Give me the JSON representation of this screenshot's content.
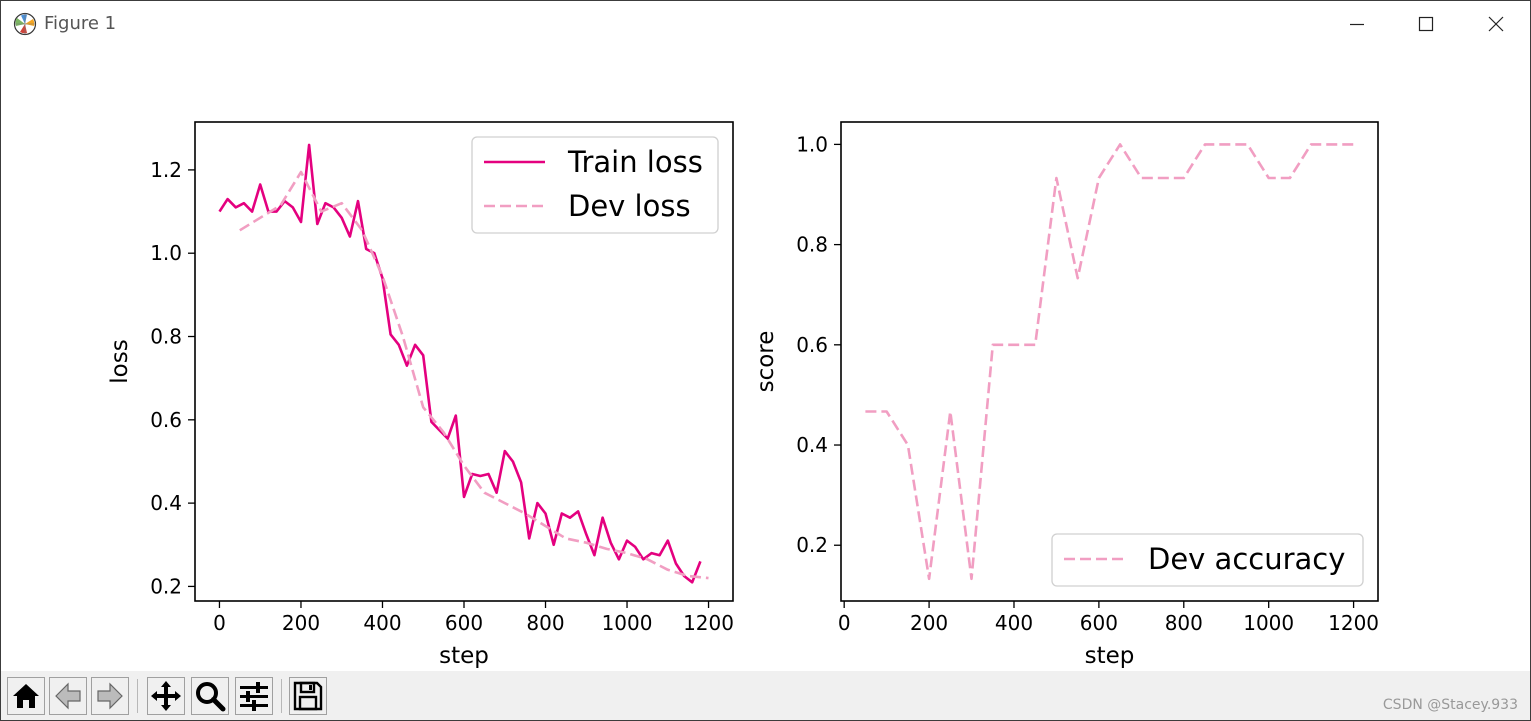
{
  "window": {
    "title": "Figure 1"
  },
  "icons": {
    "app": "matplotlib-icon",
    "minimize": "minimize-icon",
    "maximize": "maximize-icon",
    "close": "close-icon",
    "home": "home-icon",
    "back": "back-arrow-icon",
    "forward": "forward-arrow-icon",
    "pan": "pan-icon",
    "zoom": "zoom-icon",
    "configure": "sliders-icon",
    "save": "save-icon"
  },
  "watermark": "CSDN @Stacey.933",
  "chart_data": [
    {
      "type": "line",
      "xlabel": "step",
      "ylabel": "loss",
      "xlim": [
        -60,
        1260
      ],
      "ylim": [
        0.165,
        1.315
      ],
      "xticks": [
        0,
        200,
        400,
        600,
        800,
        1000,
        1200
      ],
      "xtick_labels": [
        "0",
        "200",
        "400",
        "600",
        "800",
        "1000",
        "1200"
      ],
      "yticks": [
        0.2,
        0.4,
        0.6,
        0.8,
        1.0,
        1.2
      ],
      "ytick_labels": [
        "0.2",
        "0.4",
        "0.6",
        "0.8",
        "1.0",
        "1.2"
      ],
      "legend_position": "top-right",
      "series": [
        {
          "name": "Train loss",
          "color": "#e4007f",
          "style": "solid",
          "x": [
            0,
            20,
            40,
            60,
            80,
            100,
            120,
            140,
            160,
            180,
            200,
            220,
            240,
            260,
            280,
            300,
            320,
            340,
            360,
            380,
            400,
            420,
            440,
            460,
            480,
            500,
            520,
            540,
            560,
            580,
            600,
            620,
            640,
            660,
            680,
            700,
            720,
            740,
            760,
            780,
            800,
            820,
            840,
            860,
            880,
            900,
            920,
            940,
            960,
            980,
            1000,
            1020,
            1040,
            1060,
            1080,
            1100,
            1120,
            1140,
            1160,
            1180
          ],
          "values": [
            1.1,
            1.13,
            1.11,
            1.12,
            1.1,
            1.165,
            1.1,
            1.1,
            1.125,
            1.11,
            1.075,
            1.26,
            1.07,
            1.12,
            1.11,
            1.085,
            1.04,
            1.125,
            1.01,
            1.0,
            0.94,
            0.805,
            0.78,
            0.73,
            0.78,
            0.755,
            0.595,
            0.575,
            0.555,
            0.61,
            0.415,
            0.47,
            0.465,
            0.47,
            0.425,
            0.525,
            0.5,
            0.45,
            0.315,
            0.4,
            0.375,
            0.3,
            0.375,
            0.365,
            0.38,
            0.325,
            0.275,
            0.365,
            0.305,
            0.265,
            0.31,
            0.295,
            0.265,
            0.28,
            0.275,
            0.31,
            0.255,
            0.225,
            0.21,
            0.26
          ]
        },
        {
          "name": "Dev loss",
          "color": "#f19ec2",
          "style": "dashed",
          "x": [
            50,
            100,
            150,
            200,
            250,
            300,
            350,
            400,
            450,
            500,
            550,
            600,
            650,
            700,
            750,
            800,
            850,
            900,
            950,
            1000,
            1050,
            1100,
            1150,
            1200
          ],
          "values": [
            1.055,
            1.085,
            1.115,
            1.195,
            1.1,
            1.12,
            1.055,
            0.945,
            0.8,
            0.63,
            0.57,
            0.49,
            0.425,
            0.4,
            0.375,
            0.345,
            0.315,
            0.305,
            0.29,
            0.28,
            0.265,
            0.24,
            0.225,
            0.22
          ]
        }
      ]
    },
    {
      "type": "line",
      "xlabel": "step",
      "ylabel": "score",
      "xlim": [
        -7.5,
        1257.5
      ],
      "ylim": [
        0.0887,
        1.0447
      ],
      "xticks": [
        0,
        200,
        400,
        600,
        800,
        1000,
        1200
      ],
      "xtick_labels": [
        "0",
        "200",
        "400",
        "600",
        "800",
        "1000",
        "1200"
      ],
      "yticks": [
        0.2,
        0.4,
        0.6,
        0.8,
        1.0
      ],
      "ytick_labels": [
        "0.2",
        "0.4",
        "0.6",
        "0.8",
        "1.0"
      ],
      "legend_position": "bottom-right",
      "series": [
        {
          "name": "Dev accuracy",
          "color": "#f19ec2",
          "style": "dashed",
          "x": [
            50,
            100,
            150,
            200,
            250,
            300,
            350,
            400,
            450,
            500,
            550,
            600,
            650,
            700,
            750,
            800,
            850,
            900,
            950,
            1000,
            1050,
            1100,
            1150,
            1200
          ],
          "values": [
            0.467,
            0.467,
            0.4,
            0.133,
            0.467,
            0.133,
            0.6,
            0.6,
            0.6,
            0.933,
            0.733,
            0.933,
            1.0,
            0.933,
            0.933,
            0.933,
            1.0,
            1.0,
            1.0,
            0.933,
            0.933,
            1.0,
            1.0,
            1.0
          ]
        }
      ]
    }
  ]
}
